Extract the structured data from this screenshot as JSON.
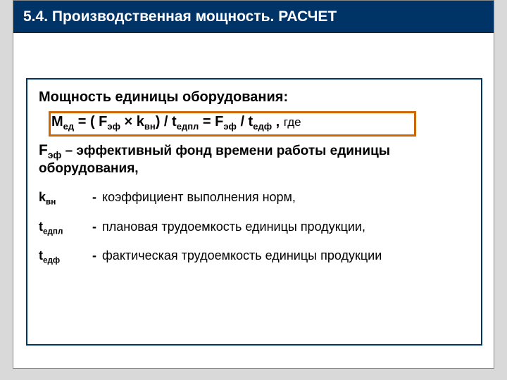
{
  "colors": {
    "page_bg": "#d9d9d9",
    "slide_bg": "#ffffff",
    "title_bg": "#003366",
    "title_text": "#ffffff",
    "box_border": "#003366",
    "highlight_border": "#cc6600",
    "text": "#000000"
  },
  "title": "5.4. Производственная мощность. РАСЧЕТ",
  "subtitle": "Мощность единицы оборудования:",
  "formula": {
    "lhs_main": "M",
    "lhs_sub": "ед",
    "eq1": " = ( F",
    "f_sub": "эф",
    "times": " × k",
    "k_sub": "вн",
    "div1": ") /  t",
    "t1_sub": "едпл",
    "eq2": " =  F",
    "f2_sub": "эф",
    "div2": " / t",
    "t2_sub": "едф",
    "trail": " , ",
    "gde": "где"
  },
  "def1": {
    "term_main": "F",
    "term_sub": "эф",
    "dash": " – ",
    "line1": "эффективный фонд времени работы единицы",
    "line2": "оборудования,"
  },
  "rows": [
    {
      "main": "k",
      "sub": "вн",
      "dash": "-",
      "text": "коэффициент выполнения норм,"
    },
    {
      "main": "t",
      "sub": "едпл",
      "dash": "-",
      "text": "плановая трудоемкость единицы продукции,"
    },
    {
      "main": "t",
      "sub": "едф",
      "dash": "-",
      "text": "фактическая трудоемкость единицы продукции"
    }
  ]
}
